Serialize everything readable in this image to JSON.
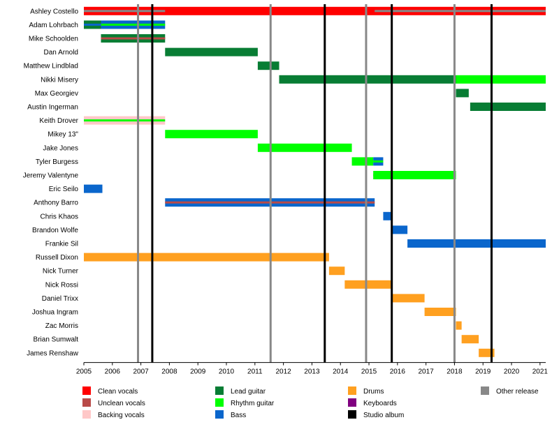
{
  "chart_data": {
    "type": "timeline",
    "x_range": [
      2005,
      2021.2
    ],
    "x_ticks": [
      "2005",
      "2006",
      "2007",
      "2008",
      "2009",
      "2010",
      "2011",
      "2012",
      "2013",
      "2014",
      "2015",
      "2016",
      "2017",
      "2018",
      "2019",
      "2020",
      "2021"
    ],
    "grid": false,
    "legend_placement": "bottom",
    "roles": {
      "clean": {
        "label": "Clean vocals",
        "color": "#ff0000"
      },
      "unclean": {
        "label": "Unclean vocals",
        "color": "#b94a48"
      },
      "backing": {
        "label": "Backing vocals",
        "color": "#ffc8c8"
      },
      "lead": {
        "label": "Lead guitar",
        "color": "#087d34"
      },
      "rhythm": {
        "label": "Rhythm guitar",
        "color": "#00ff00"
      },
      "bass": {
        "label": "Bass",
        "color": "#0a66cc"
      },
      "drums": {
        "label": "Drums",
        "color": "#ffa020"
      },
      "keys": {
        "label": "Keyboards",
        "color": "#800080"
      },
      "studio": {
        "label": "Studio album",
        "color": "#000000"
      },
      "other": {
        "label": "Other release",
        "color": "#888888"
      }
    },
    "legend_order": [
      "clean",
      "unclean",
      "backing",
      "lead",
      "rhythm",
      "bass",
      "drums",
      "keys",
      "studio",
      "other"
    ],
    "members": [
      {
        "name": "Ashley Costello",
        "spans": [
          {
            "start": 2005.0,
            "end": 2021.2,
            "role": "clean",
            "secondary": "other",
            "secondary_spans": [
              [
                2005.0,
                2007.85
              ],
              [
                2015.2,
                2021.2
              ]
            ]
          }
        ]
      },
      {
        "name": "Adam Lohrbach",
        "spans": [
          {
            "start": 2005.0,
            "end": 2005.6,
            "role": "lead",
            "secondary": "bass"
          },
          {
            "start": 2005.6,
            "end": 2007.85,
            "role": "bass",
            "secondary": "rhythm"
          }
        ]
      },
      {
        "name": "Mike Schoolden",
        "spans": [
          {
            "start": 2005.6,
            "end": 2007.85,
            "role": "lead",
            "secondary": "unclean"
          }
        ]
      },
      {
        "name": "Dan Arnold",
        "spans": [
          {
            "start": 2007.85,
            "end": 2011.1,
            "role": "lead"
          }
        ]
      },
      {
        "name": "Matthew Lindblad",
        "spans": [
          {
            "start": 2011.1,
            "end": 2011.85,
            "role": "lead"
          }
        ]
      },
      {
        "name": "Nikki Misery",
        "spans": [
          {
            "start": 2011.85,
            "end": 2018.05,
            "role": "lead"
          },
          {
            "start": 2018.05,
            "end": 2021.2,
            "role": "rhythm"
          }
        ]
      },
      {
        "name": "Max Georgiev",
        "spans": [
          {
            "start": 2018.05,
            "end": 2018.5,
            "role": "lead"
          }
        ]
      },
      {
        "name": "Austin Ingerman",
        "spans": [
          {
            "start": 2018.55,
            "end": 2021.2,
            "role": "lead"
          }
        ]
      },
      {
        "name": "Keith Drover",
        "spans": [
          {
            "start": 2005.0,
            "end": 2007.85,
            "role": "backing",
            "secondary": "rhythm"
          }
        ]
      },
      {
        "name": "Mikey 13\"",
        "spans": [
          {
            "start": 2007.85,
            "end": 2011.1,
            "role": "rhythm"
          }
        ]
      },
      {
        "name": "Jake Jones",
        "spans": [
          {
            "start": 2011.1,
            "end": 2014.4,
            "role": "rhythm"
          }
        ]
      },
      {
        "name": "Tyler Burgess",
        "spans": [
          {
            "start": 2014.4,
            "end": 2015.15,
            "role": "rhythm"
          },
          {
            "start": 2015.15,
            "end": 2015.5,
            "role": "bass",
            "secondary": "rhythm"
          }
        ]
      },
      {
        "name": "Jeremy Valentyne",
        "spans": [
          {
            "start": 2015.15,
            "end": 2018.05,
            "role": "rhythm",
            "secondary": "rhythm"
          }
        ]
      },
      {
        "name": "Eric Seilo",
        "spans": [
          {
            "start": 2005.0,
            "end": 2005.65,
            "role": "bass"
          }
        ]
      },
      {
        "name": "Anthony Barro",
        "spans": [
          {
            "start": 2007.85,
            "end": 2015.2,
            "role": "bass",
            "secondary": "unclean"
          }
        ]
      },
      {
        "name": "Chris Khaos",
        "spans": [
          {
            "start": 2015.5,
            "end": 2015.8,
            "role": "bass"
          }
        ]
      },
      {
        "name": "Brandon Wolfe",
        "spans": [
          {
            "start": 2015.8,
            "end": 2016.35,
            "role": "bass"
          }
        ]
      },
      {
        "name": "Frankie Sil",
        "spans": [
          {
            "start": 2016.35,
            "end": 2021.2,
            "role": "bass"
          }
        ]
      },
      {
        "name": "Russell Dixon",
        "spans": [
          {
            "start": 2005.0,
            "end": 2013.6,
            "role": "drums"
          }
        ]
      },
      {
        "name": "Nick Turner",
        "spans": [
          {
            "start": 2013.6,
            "end": 2014.15,
            "role": "drums"
          }
        ]
      },
      {
        "name": "Nick Rossi",
        "spans": [
          {
            "start": 2014.15,
            "end": 2015.8,
            "role": "drums"
          }
        ]
      },
      {
        "name": "Daniel Trixx",
        "spans": [
          {
            "start": 2015.8,
            "end": 2016.95,
            "role": "drums"
          }
        ]
      },
      {
        "name": "Joshua Ingram",
        "spans": [
          {
            "start": 2016.95,
            "end": 2018.05,
            "role": "drums"
          }
        ]
      },
      {
        "name": "Zac Morris",
        "spans": [
          {
            "start": 2018.05,
            "end": 2018.25,
            "role": "drums"
          }
        ]
      },
      {
        "name": "Brian Sumwalt",
        "spans": [
          {
            "start": 2018.25,
            "end": 2018.85,
            "role": "drums"
          }
        ]
      },
      {
        "name": "James Renshaw",
        "spans": [
          {
            "start": 2018.85,
            "end": 2019.4,
            "role": "drums"
          }
        ]
      }
    ],
    "vertical_lines": [
      {
        "x": 2006.9,
        "role": "other"
      },
      {
        "x": 2007.4,
        "role": "studio"
      },
      {
        "x": 2011.55,
        "role": "other"
      },
      {
        "x": 2013.45,
        "role": "studio"
      },
      {
        "x": 2014.9,
        "role": "other"
      },
      {
        "x": 2015.8,
        "role": "studio"
      },
      {
        "x": 2018.0,
        "role": "other"
      },
      {
        "x": 2019.3,
        "role": "studio"
      }
    ]
  }
}
